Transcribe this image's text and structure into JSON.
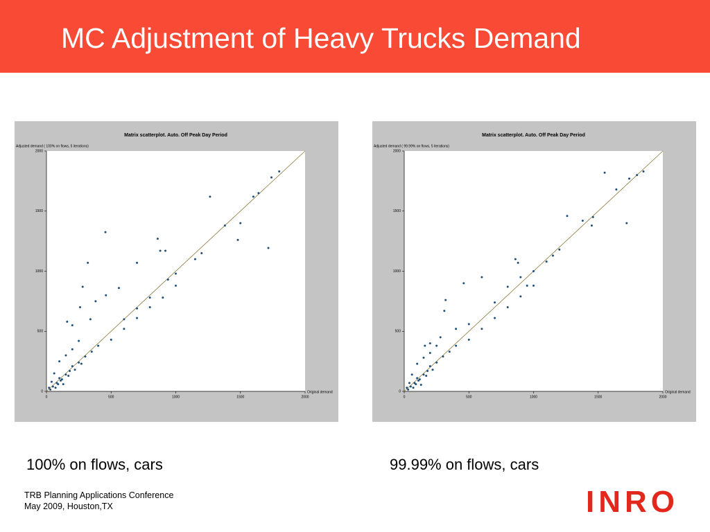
{
  "slide": {
    "title": "MC Adjustment of Heavy Trucks Demand",
    "captions": [
      "100% on flows, cars",
      "99.99% on flows, cars"
    ],
    "footer": [
      "TRB Planning Applications Conference",
      "May 2009, Houston,TX"
    ],
    "logo": "INRO"
  },
  "chart_data": [
    {
      "type": "scatter",
      "title": "Matrix scatterplot. Auto. Off Peak Day Period",
      "y_label": "Adjusted demand ( 100% on flows, 5 iterations)",
      "x_label": "Original demand",
      "color": "#1f4e79",
      "xlim": [
        0,
        2000
      ],
      "ylim": [
        0,
        2000
      ],
      "xticks": [
        0,
        500,
        1000,
        1500,
        2000
      ],
      "yticks": [
        0,
        500,
        1000,
        1500,
        2000
      ],
      "x": [
        456,
        1265,
        1716,
        860,
        880,
        920,
        700,
        320,
        1480,
        1500,
        1380,
        1640,
        1740,
        1800,
        1600,
        280,
        560,
        460,
        380,
        260,
        160,
        200,
        340,
        940,
        1000,
        1150,
        1200,
        600,
        700,
        800,
        800,
        900,
        1000,
        600,
        700,
        500,
        20,
        50,
        80,
        100,
        120,
        150,
        180,
        200,
        250,
        300,
        350,
        400,
        60,
        100,
        150,
        200,
        250,
        40,
        70,
        130,
        30,
        90,
        110,
        170,
        220,
        270
      ],
      "y": [
        1325,
        1620,
        1193,
        1270,
        1170,
        1170,
        1070,
        1070,
        1260,
        1400,
        1380,
        1650,
        1780,
        1830,
        1620,
        870,
        860,
        800,
        750,
        700,
        580,
        550,
        600,
        930,
        980,
        1100,
        1150,
        600,
        690,
        780,
        700,
        780,
        880,
        520,
        610,
        430,
        30,
        40,
        70,
        110,
        100,
        140,
        170,
        210,
        240,
        290,
        330,
        380,
        150,
        250,
        300,
        350,
        420,
        80,
        30,
        60,
        15,
        60,
        90,
        130,
        180,
        230
      ]
    },
    {
      "type": "scatter",
      "title": "Matrix scatterplot. Auto. Off Peak Day Period",
      "y_label": "Adjusted demand ( 99.99% on flows, 5 iterations)",
      "x_label": "Original demand",
      "color": "#1f4e79",
      "xlim": [
        0,
        2000
      ],
      "ylim": [
        0,
        2000
      ],
      "xticks": [
        0,
        500,
        1000,
        1500,
        2000
      ],
      "yticks": [
        0,
        500,
        1000,
        1500,
        2000
      ],
      "x": [
        1550,
        1720,
        1260,
        1450,
        1460,
        1380,
        1640,
        1740,
        1800,
        1850,
        860,
        880,
        460,
        320,
        310,
        600,
        800,
        900,
        950,
        700,
        500,
        400,
        280,
        200,
        160,
        1000,
        1100,
        1150,
        1200,
        800,
        900,
        1000,
        600,
        700,
        500,
        20,
        50,
        80,
        100,
        120,
        150,
        180,
        200,
        250,
        300,
        350,
        400,
        60,
        100,
        150,
        200,
        250,
        40,
        70,
        130,
        30,
        90,
        110,
        170,
        220
      ],
      "y": [
        1820,
        1400,
        1460,
        1380,
        1450,
        1420,
        1680,
        1770,
        1800,
        1830,
        1100,
        1070,
        900,
        760,
        670,
        950,
        870,
        950,
        880,
        740,
        560,
        520,
        450,
        400,
        380,
        1000,
        1080,
        1130,
        1180,
        700,
        790,
        880,
        520,
        610,
        430,
        30,
        40,
        70,
        110,
        100,
        140,
        170,
        210,
        240,
        290,
        330,
        380,
        140,
        230,
        280,
        320,
        380,
        70,
        30,
        55,
        15,
        60,
        90,
        130,
        180
      ]
    }
  ]
}
